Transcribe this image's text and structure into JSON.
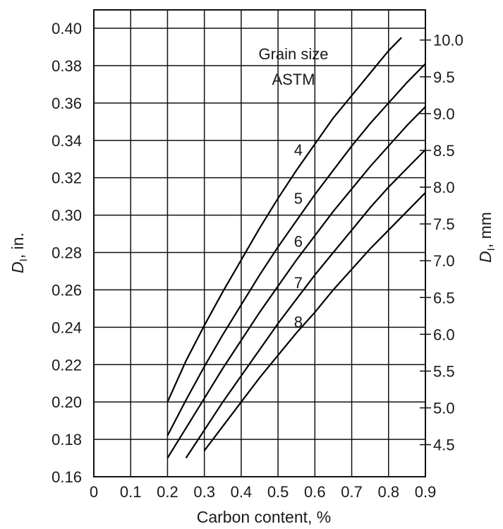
{
  "chart_data": {
    "type": "line",
    "title": "",
    "xlabel": "Carbon content, %",
    "ylabel_left": "D",
    "ylabel_left_sub": "I",
    "ylabel_left_unit": ", in.",
    "ylabel_right": "D",
    "ylabel_right_sub": "I",
    "ylabel_right_unit": ", mm",
    "legend_title_line1": "Grain size",
    "legend_title_line2": "ASTM",
    "xlim": [
      0,
      0.9
    ],
    "ylim": [
      0.16,
      0.405
    ],
    "grid": true,
    "x_ticks": [
      "0",
      "0.1",
      "0.2",
      "0.3",
      "0.4",
      "0.5",
      "0.6",
      "0.7",
      "0.8",
      "0.9"
    ],
    "y_ticks_left": [
      "0.16",
      "0.18",
      "0.20",
      "0.22",
      "0.24",
      "0.26",
      "0.28",
      "0.30",
      "0.32",
      "0.34",
      "0.36",
      "0.38",
      "0.40"
    ],
    "y_ticks_right": [
      "4.5",
      "5.0",
      "5.5",
      "6.0",
      "6.5",
      "7.0",
      "7.5",
      "8.0",
      "8.5",
      "9.0",
      "9.5",
      "10.0"
    ],
    "y_ticks_right_mm": [
      4.5,
      5.0,
      5.5,
      6.0,
      6.5,
      7.0,
      7.5,
      8.0,
      8.5,
      9.0,
      9.5,
      10.0
    ],
    "series": [
      {
        "name": "4",
        "x": [
          0.2,
          0.25,
          0.3,
          0.35,
          0.4,
          0.45,
          0.5,
          0.55,
          0.6,
          0.65,
          0.7,
          0.75,
          0.8,
          0.835
        ],
        "y": [
          0.2,
          0.222,
          0.241,
          0.259,
          0.276,
          0.293,
          0.309,
          0.324,
          0.338,
          0.352,
          0.364,
          0.376,
          0.388,
          0.395
        ]
      },
      {
        "name": "5",
        "x": [
          0.2,
          0.25,
          0.3,
          0.35,
          0.4,
          0.45,
          0.5,
          0.55,
          0.6,
          0.65,
          0.7,
          0.75,
          0.8,
          0.85,
          0.9
        ],
        "y": [
          0.182,
          0.201,
          0.219,
          0.236,
          0.252,
          0.268,
          0.283,
          0.297,
          0.311,
          0.324,
          0.337,
          0.349,
          0.36,
          0.371,
          0.381
        ]
      },
      {
        "name": "6",
        "x": [
          0.2,
          0.25,
          0.3,
          0.35,
          0.4,
          0.45,
          0.5,
          0.55,
          0.6,
          0.65,
          0.7,
          0.75,
          0.8,
          0.85,
          0.9
        ],
        "y": [
          0.17,
          0.186,
          0.202,
          0.218,
          0.233,
          0.248,
          0.262,
          0.276,
          0.289,
          0.302,
          0.314,
          0.326,
          0.337,
          0.348,
          0.358
        ]
      },
      {
        "name": "7",
        "x": [
          0.25,
          0.3,
          0.35,
          0.4,
          0.45,
          0.5,
          0.55,
          0.6,
          0.65,
          0.7,
          0.75,
          0.8,
          0.85,
          0.9
        ],
        "y": [
          0.17,
          0.185,
          0.2,
          0.214,
          0.228,
          0.242,
          0.255,
          0.268,
          0.28,
          0.292,
          0.304,
          0.315,
          0.325,
          0.335
        ]
      },
      {
        "name": "8",
        "x": [
          0.3,
          0.35,
          0.4,
          0.45,
          0.5,
          0.55,
          0.6,
          0.65,
          0.7,
          0.75,
          0.8,
          0.85,
          0.9
        ],
        "y": [
          0.174,
          0.187,
          0.2,
          0.213,
          0.225,
          0.237,
          0.248,
          0.26,
          0.271,
          0.282,
          0.292,
          0.302,
          0.312
        ]
      }
    ],
    "curve_labels": [
      {
        "text": "4",
        "x": 0.555,
        "y": 0.332
      },
      {
        "text": "5",
        "x": 0.555,
        "y": 0.306
      },
      {
        "text": "6",
        "x": 0.555,
        "y": 0.283
      },
      {
        "text": "7",
        "x": 0.555,
        "y": 0.261
      },
      {
        "text": "8",
        "x": 0.555,
        "y": 0.24
      }
    ]
  }
}
